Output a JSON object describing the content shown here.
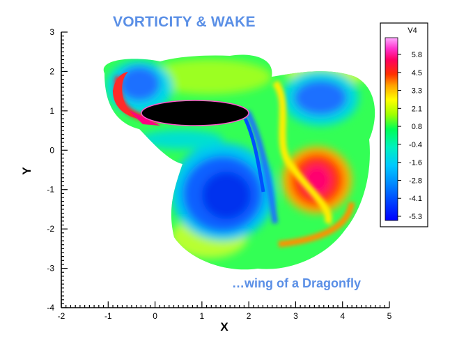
{
  "chart_data": {
    "type": "heatmap",
    "title": "VORTICITY & WAKE",
    "annotation": "…wing of a Dragonfly",
    "xlabel": "X",
    "ylabel": "Y",
    "xlim": [
      -2,
      5
    ],
    "ylim": [
      -4,
      3
    ],
    "xticks": [
      "-2",
      "-1",
      "0",
      "1",
      "2",
      "3",
      "4",
      "5"
    ],
    "yticks": [
      "3",
      "2",
      "1",
      "0",
      "-1",
      "-2",
      "-3",
      "-4"
    ],
    "colorbar": {
      "label": "V4",
      "levels": [
        "5.8",
        "4.5",
        "3.3",
        "2.1",
        "0.8",
        "-0.4",
        "-1.6",
        "-2.8",
        "-4.1",
        "-5.3"
      ],
      "colors": [
        "#0000ff",
        "#0055ff",
        "#00aaff",
        "#00e0d0",
        "#00ff66",
        "#80ff00",
        "#ffff00",
        "#ffa000",
        "#ff2000",
        "#ff0066",
        "#ff33cc",
        "#ff99ff"
      ]
    },
    "features": [
      {
        "name": "wing",
        "type": "ellipse",
        "center": [
          0.95,
          1.0
        ],
        "rx": 1.15,
        "ry": 0.28,
        "color": "#000000"
      },
      {
        "name": "vortex-upper-left",
        "sign": "negative",
        "center": [
          -0.35,
          1.7
        ],
        "strength": -3.5
      },
      {
        "name": "vortex-lower-center",
        "sign": "negative",
        "center": [
          1.8,
          -1.05
        ],
        "strength": -4.5
      },
      {
        "name": "vortex-upper-right",
        "sign": "negative",
        "center": [
          3.5,
          1.25
        ],
        "strength": -3.0
      },
      {
        "name": "vortex-right",
        "sign": "positive",
        "center": [
          3.45,
          -0.75
        ],
        "strength": 5.0
      }
    ]
  }
}
